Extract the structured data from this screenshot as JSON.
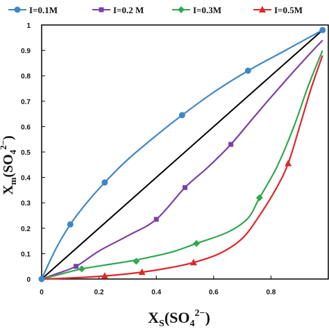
{
  "chart_data": {
    "type": "line",
    "xlabel": {
      "main": "X",
      "sub": "S",
      "paren": "(SO",
      "sub2": "4",
      "sup": "2−",
      "close": ")"
    },
    "ylabel": {
      "main": "X",
      "sub": "m",
      "paren": "(SO",
      "sub2": "4",
      "sup": "2−",
      "close": ")"
    },
    "xlim": [
      0,
      1
    ],
    "ylim": [
      0,
      1
    ],
    "x_ticks": [
      0,
      0.2,
      0.4,
      0.6,
      0.8
    ],
    "x_tick_labels": [
      "0",
      "0.2",
      "0.4",
      "0.6",
      "0.8"
    ],
    "y_ticks": [
      0,
      0.1,
      0.2,
      0.3,
      0.4,
      0.5,
      0.6,
      0.7,
      0.8,
      0.9,
      1
    ],
    "y_tick_labels": [
      "0",
      "0.1",
      "0.2",
      "0.3",
      "0.4",
      "0.5",
      "0.6",
      "0.7",
      "0.8",
      "0.9",
      "1"
    ],
    "grid": false,
    "legend_position": "top",
    "diagonal": {
      "x": [
        0,
        0.98
      ],
      "y": [
        0,
        0.98
      ],
      "color": "#000000"
    },
    "series": [
      {
        "name": "I=0.1M",
        "color": "#3F86C7",
        "marker": "circle",
        "points": {
          "x": [
            0,
            0.1,
            0.22,
            0.49,
            0.72,
            0.98
          ],
          "y": [
            0,
            0.215,
            0.38,
            0.645,
            0.82,
            0.98
          ]
        },
        "curve": {
          "x": [
            0,
            0.05,
            0.1,
            0.15,
            0.22,
            0.3,
            0.4,
            0.49,
            0.6,
            0.72,
            0.85,
            0.98
          ],
          "y": [
            0,
            0.12,
            0.215,
            0.29,
            0.38,
            0.47,
            0.565,
            0.645,
            0.735,
            0.82,
            0.9,
            0.98
          ]
        }
      },
      {
        "name": "I=0.2 M",
        "color": "#7B3FA6",
        "marker": "square",
        "points": {
          "x": [
            0.12,
            0.4,
            0.5,
            0.66
          ],
          "y": [
            0.05,
            0.235,
            0.36,
            0.53
          ]
        },
        "curve": {
          "x": [
            0,
            0.05,
            0.12,
            0.2,
            0.3,
            0.4,
            0.5,
            0.58,
            0.66,
            0.75,
            0.85,
            0.93,
            0.98
          ],
          "y": [
            0,
            0.02,
            0.05,
            0.11,
            0.17,
            0.235,
            0.36,
            0.44,
            0.53,
            0.65,
            0.78,
            0.88,
            0.94
          ]
        }
      },
      {
        "name": "I=0.3M",
        "color": "#2FA84F",
        "marker": "diamond",
        "points": {
          "x": [
            0.14,
            0.33,
            0.54,
            0.76
          ],
          "y": [
            0.04,
            0.07,
            0.14,
            0.32
          ]
        },
        "curve": {
          "x": [
            0,
            0.07,
            0.14,
            0.25,
            0.33,
            0.45,
            0.54,
            0.65,
            0.72,
            0.76,
            0.82,
            0.88,
            0.93,
            0.98
          ],
          "y": [
            0,
            0.02,
            0.04,
            0.06,
            0.075,
            0.105,
            0.14,
            0.185,
            0.24,
            0.32,
            0.44,
            0.6,
            0.76,
            0.9
          ]
        }
      },
      {
        "name": "I=0.5M",
        "color": "#E0262B",
        "marker": "triangle",
        "points": {
          "x": [
            0.22,
            0.35,
            0.53,
            0.86
          ],
          "y": [
            0.012,
            0.027,
            0.065,
            0.455
          ]
        },
        "curve": {
          "x": [
            0,
            0.1,
            0.22,
            0.35,
            0.45,
            0.53,
            0.62,
            0.7,
            0.76,
            0.82,
            0.86,
            0.9,
            0.94,
            0.98
          ],
          "y": [
            0,
            0.004,
            0.012,
            0.027,
            0.045,
            0.065,
            0.1,
            0.16,
            0.25,
            0.36,
            0.455,
            0.6,
            0.75,
            0.88
          ]
        }
      }
    ]
  }
}
